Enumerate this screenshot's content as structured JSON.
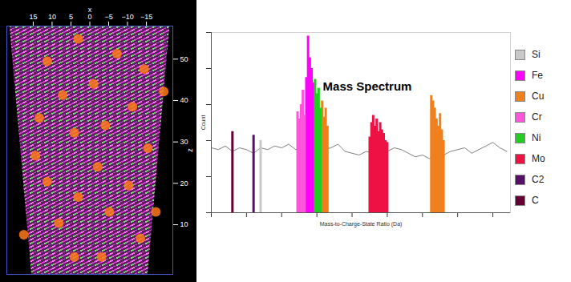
{
  "chart_data": [
    {
      "type": "scatter",
      "xlabel": "x",
      "ylabel": "z",
      "xlim": [
        22,
        -22
      ],
      "xticks": [
        15,
        10,
        5,
        0,
        -5,
        -10,
        -15
      ],
      "ylim": [
        -2,
        58
      ],
      "yticks": [
        10,
        20,
        30,
        40,
        50
      ],
      "tip": {
        "z": [
          -2,
          58
        ],
        "x_left": [
          15.4,
          21.2
        ],
        "x_right": [
          -15.4,
          -21.2
        ]
      },
      "color": "#ff7a1a",
      "x": [
        4.1,
        -3.1,
        -13.4,
        8.2,
        -5.2,
        3.1,
        11.3,
        -10.3,
        -2.1,
        14.4,
        -15.4,
        4.1,
        -4.1,
        13.4,
        -11.3,
        7.2,
        -1,
        -14.4,
        11.3,
        -7.2,
        3.1,
        17.5,
        -17.5,
        -19.6
      ],
      "y": [
        2.2,
        2.2,
        6.7,
        10.4,
        13.1,
        16.7,
        20.4,
        19.5,
        24,
        26.7,
        28.5,
        32.2,
        34,
        35.8,
        38.5,
        41.3,
        44,
        47.6,
        49.5,
        51.3,
        54.9,
        7.6,
        13.1,
        42.2
      ]
    },
    {
      "type": "bar",
      "title": "Mass Spectrum",
      "xlabel": "Mass-to-Charge-State Ratio (Da)",
      "ylabel": "Count",
      "xlim": [
        0,
        85
      ],
      "xticks": [
        0,
        10,
        20,
        30,
        40,
        50,
        60,
        70,
        80
      ],
      "ylim": [
        0,
        10
      ],
      "yticks": [
        0,
        2,
        4,
        6,
        8,
        10
      ],
      "tick_labels": false,
      "legend": "right",
      "background": {
        "color": "#808080",
        "x": [
          0,
          2,
          4,
          6,
          8,
          10,
          12,
          14,
          16,
          18,
          20,
          22,
          24,
          26,
          28,
          30,
          32,
          34,
          36,
          38,
          40,
          42,
          44,
          46,
          48,
          50,
          52,
          54,
          56,
          58,
          60,
          62,
          64,
          66,
          68,
          70,
          72,
          74,
          76,
          78,
          80,
          82,
          84
        ],
        "values": [
          3.6,
          3.5,
          3.7,
          3.4,
          3.6,
          3.5,
          3.3,
          3.6,
          3.5,
          3.7,
          3.6,
          3.8,
          3.5,
          3.6,
          3.4,
          3.7,
          3.5,
          3.6,
          3.8,
          3.4,
          3.3,
          3.2,
          3.4,
          3.3,
          3.5,
          3.4,
          3.6,
          3.5,
          3.3,
          3.1,
          3.2,
          3.0,
          3.3,
          3.2,
          3.4,
          3.5,
          3.6,
          3.3,
          3.5,
          3.7,
          3.9,
          3.6,
          3.4
        ]
      },
      "series": [
        {
          "name": "Si",
          "color": "#c8c8c8",
          "x": [
            14
          ],
          "values": [
            4.0
          ]
        },
        {
          "name": "Fe",
          "color": "#ff00ff",
          "x": [
            27,
            27.5,
            28,
            28.5,
            29
          ],
          "values": [
            7.5,
            9.8,
            8.6,
            8.0,
            7.2
          ]
        },
        {
          "name": "Cu",
          "color": "#f07f1e",
          "x": [
            31.5,
            32,
            32.5,
            33,
            62.5,
            63,
            63.5,
            64,
            64.5,
            65,
            65.5,
            66
          ],
          "values": [
            6.2,
            5.3,
            5.8,
            4.8,
            6.5,
            6.2,
            5.8,
            5.2,
            4.8,
            5.5,
            4.6,
            4.0
          ]
        },
        {
          "name": "Cr",
          "color": "#ff55dd",
          "x": [
            24.5,
            25,
            25.5,
            26,
            26.5
          ],
          "values": [
            5.6,
            5.2,
            6.0,
            6.8,
            5.4
          ]
        },
        {
          "name": "Ni",
          "color": "#22cc22",
          "x": [
            29.5,
            30,
            30.5,
            31
          ],
          "values": [
            7.4,
            6.6,
            6.9,
            5.8
          ]
        },
        {
          "name": "Mo",
          "color": "#ee1144",
          "x": [
            45,
            45.5,
            46,
            46.5,
            47,
            47.5,
            48,
            48.5,
            49,
            49.5,
            50
          ],
          "values": [
            4.2,
            5.0,
            5.4,
            4.8,
            5.2,
            4.5,
            5.0,
            4.6,
            4.4,
            4.0,
            3.9
          ]
        },
        {
          "name": "C2",
          "color": "#551166",
          "x": [
            12
          ],
          "values": [
            4.3
          ]
        },
        {
          "name": "C",
          "color": "#660033",
          "x": [
            6
          ],
          "values": [
            4.5
          ]
        }
      ]
    }
  ]
}
